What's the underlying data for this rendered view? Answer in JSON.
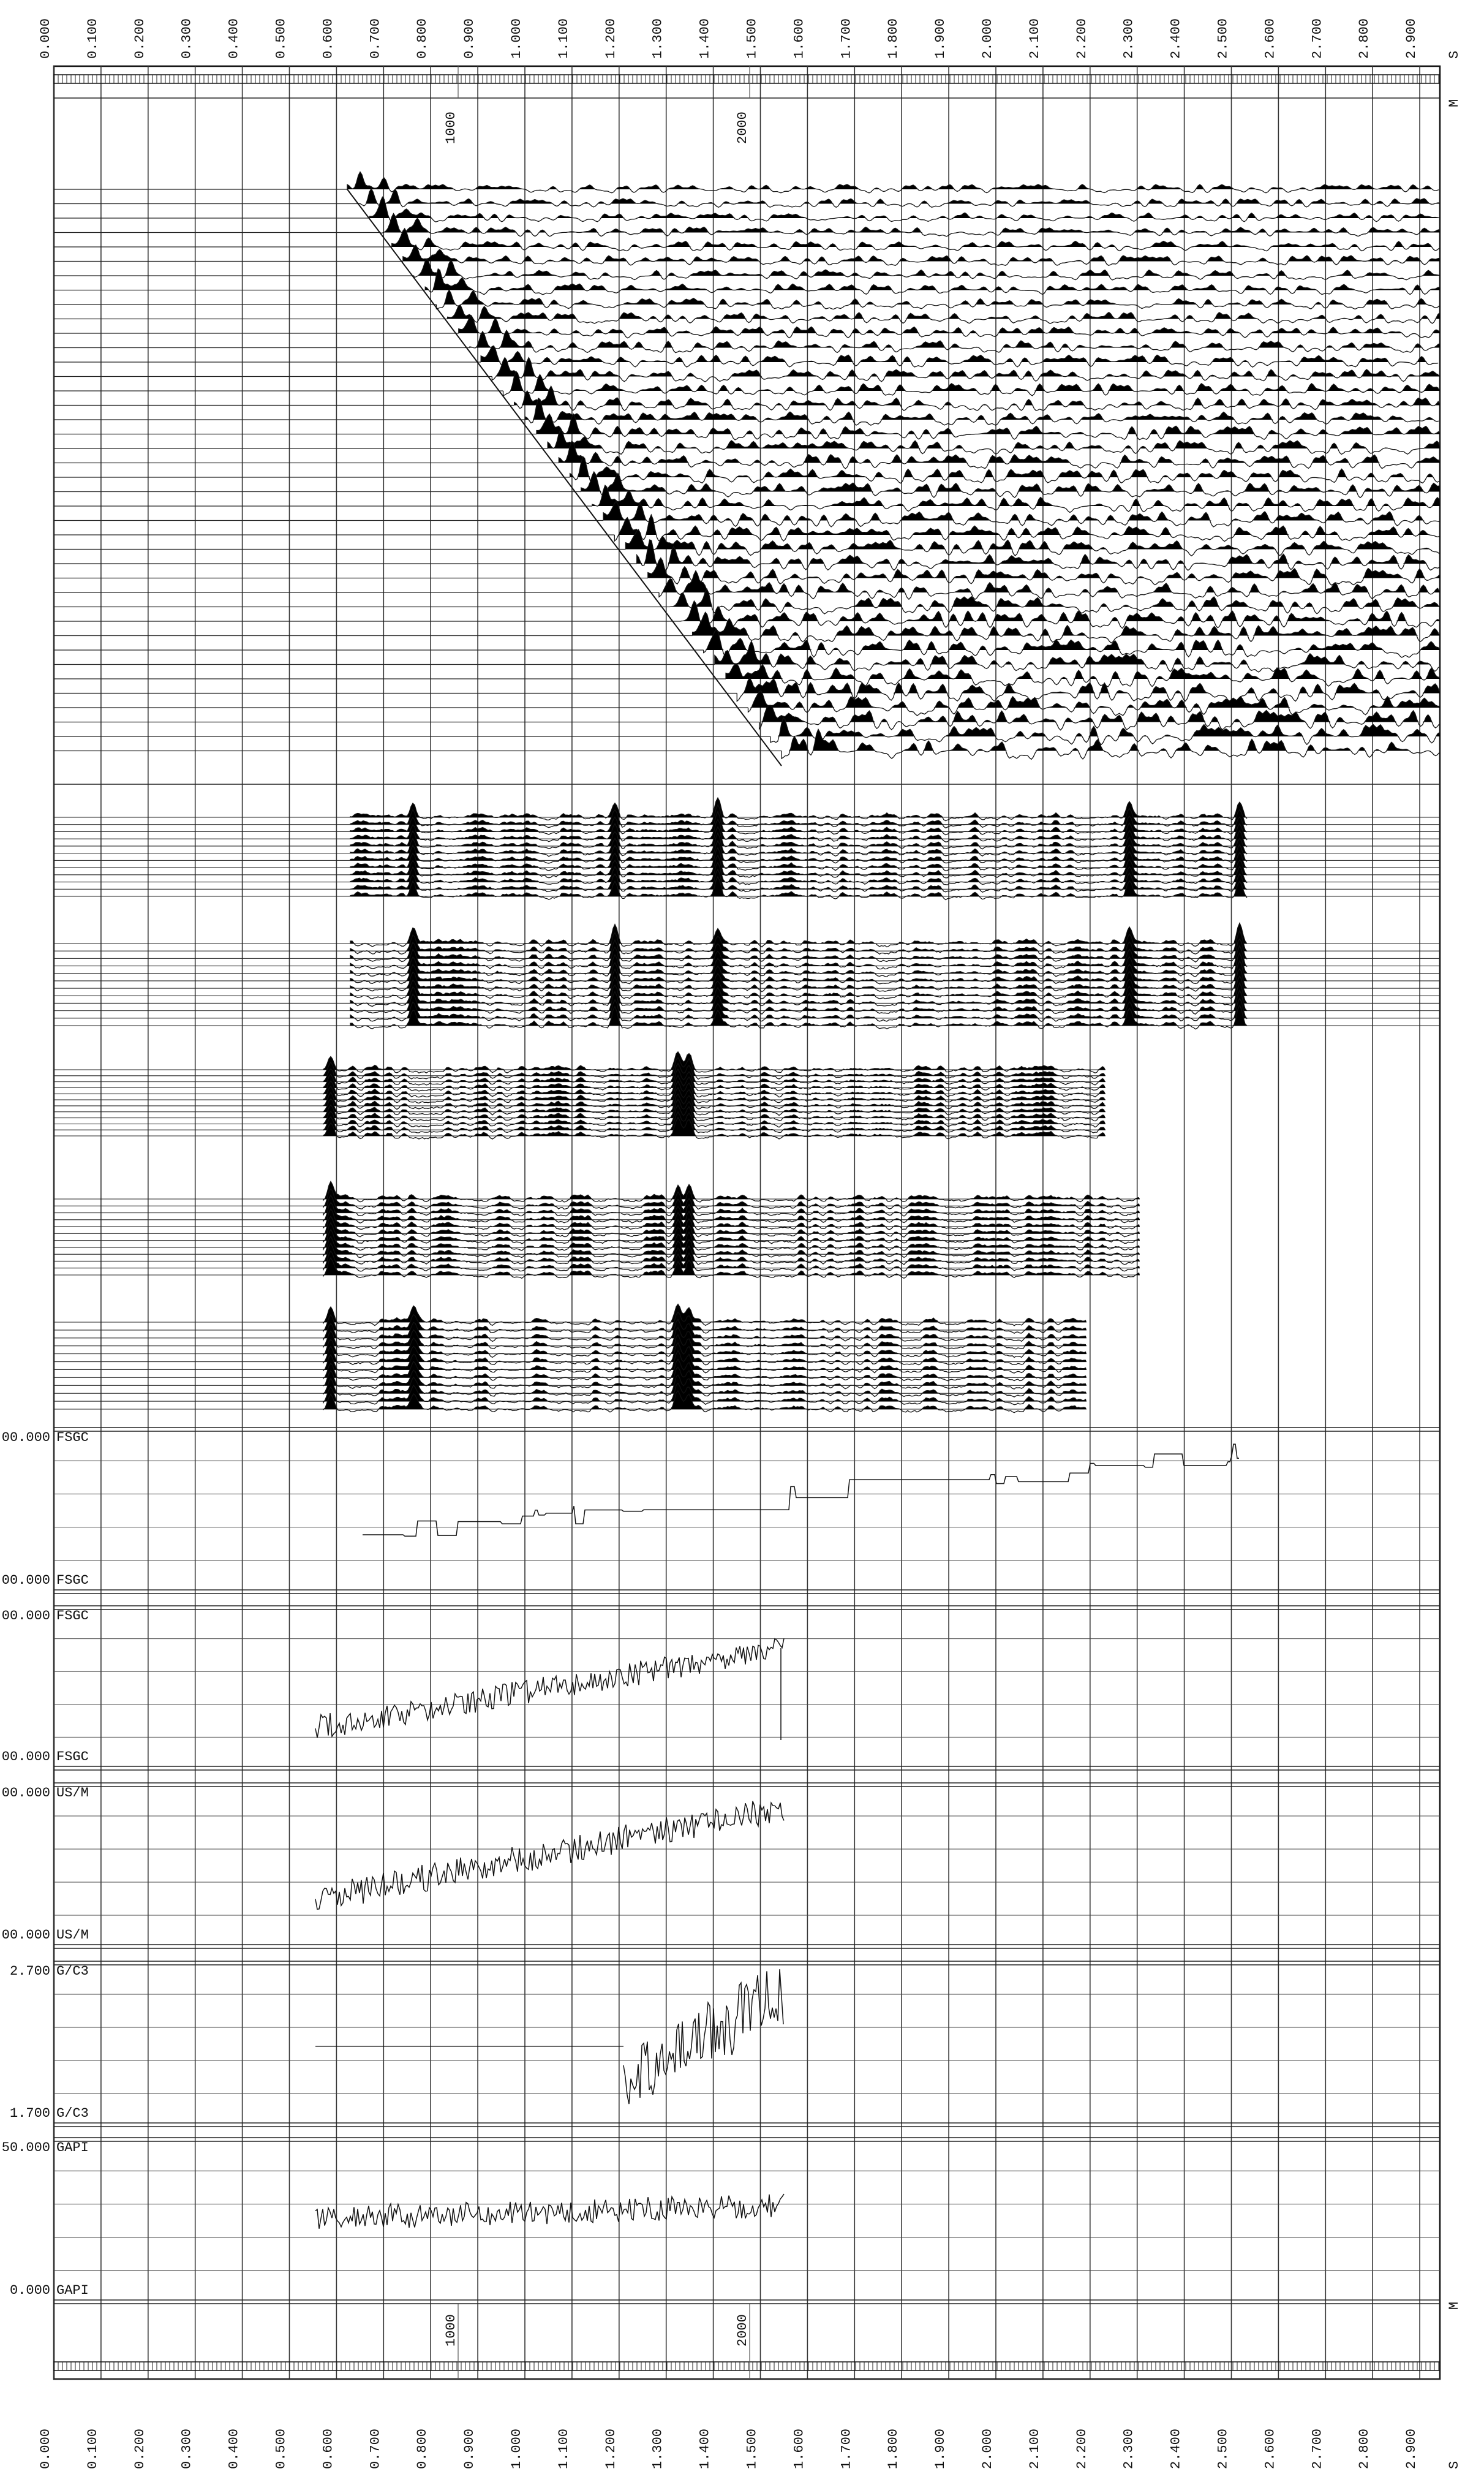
{
  "time_axis": {
    "ticks": [
      "0.000",
      "0.100",
      "0.200",
      "0.300",
      "0.400",
      "0.500",
      "0.600",
      "0.700",
      "0.800",
      "0.900",
      "1.000",
      "1.100",
      "1.200",
      "1.300",
      "1.400",
      "1.500",
      "1.600",
      "1.700",
      "1.800",
      "1.900",
      "2.000",
      "2.100",
      "2.200",
      "2.300",
      "2.400",
      "2.500",
      "2.600",
      "2.700",
      "2.800",
      "2.900"
    ],
    "unit": "S"
  },
  "depth_axis": {
    "labels": [
      "1000",
      "2000"
    ],
    "unit": "M"
  },
  "tracks": [
    {
      "top_value": "00.000",
      "top_unit": "FSGC",
      "bottom_value": "00.000",
      "bottom_unit": "FSGC"
    },
    {
      "top_value": "00.000",
      "top_unit": "FSGC",
      "bottom_value": "00.000",
      "bottom_unit": "FSGC"
    },
    {
      "top_value": "00.000",
      "top_unit": "US/M",
      "bottom_value": "00.000",
      "bottom_unit": "US/M"
    },
    {
      "top_value": "2.700",
      "top_unit": "G/C3",
      "bottom_value": "1.700",
      "bottom_unit": "G/C3"
    },
    {
      "top_value": "50.000",
      "top_unit": "GAPI",
      "bottom_value": "0.000",
      "bottom_unit": "GAPI"
    }
  ]
}
